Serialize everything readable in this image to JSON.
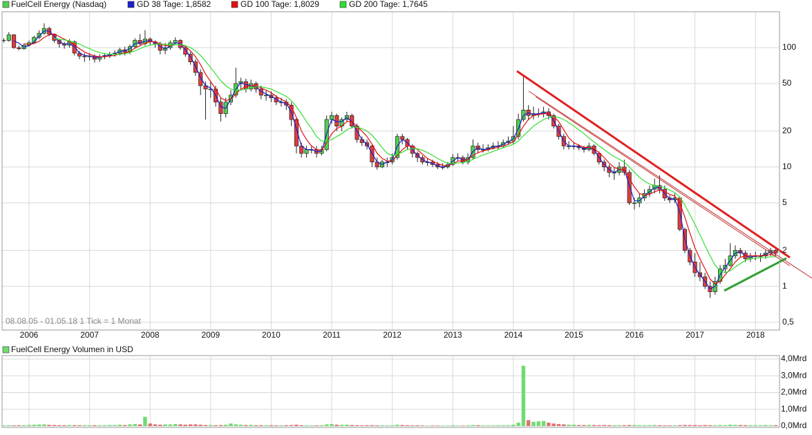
{
  "chart_data": [
    {
      "type": "candlestick",
      "title": "FuelCell Energy (Nasdaq)",
      "annotation": "08.08.05 - 01.05.18   1 Tick = 1 Monat",
      "categories": [
        null,
        null,
        null,
        null,
        null,
        "2006",
        null,
        null,
        null,
        null,
        null,
        null,
        null,
        null,
        null,
        null,
        null,
        "2007",
        null,
        null,
        null,
        null,
        null,
        null,
        null,
        null,
        null,
        null,
        null,
        "2008",
        null,
        null,
        null,
        null,
        null,
        null,
        null,
        null,
        null,
        null,
        null,
        "2009",
        null,
        null,
        null,
        null,
        null,
        null,
        null,
        null,
        null,
        null,
        null,
        "2010",
        null,
        null,
        null,
        null,
        null,
        null,
        null,
        null,
        null,
        null,
        null,
        "2011",
        null,
        null,
        null,
        null,
        null,
        null,
        null,
        null,
        null,
        null,
        null,
        "2012",
        null,
        null,
        null,
        null,
        null,
        null,
        null,
        null,
        null,
        null,
        null,
        "2013",
        null,
        null,
        null,
        null,
        null,
        null,
        null,
        null,
        null,
        null,
        null,
        "2014",
        null,
        null,
        null,
        null,
        null,
        null,
        null,
        null,
        null,
        null,
        null,
        "2015",
        null,
        null,
        null,
        null,
        null,
        null,
        null,
        null,
        null,
        null,
        null,
        "2016",
        null,
        null,
        null,
        null,
        null,
        null,
        null,
        null,
        null,
        null,
        null,
        "2017",
        null,
        null,
        null,
        null,
        null,
        null,
        null,
        null,
        null,
        null,
        null,
        "2018",
        null,
        null,
        null,
        null
      ],
      "close": [
        115,
        128,
        100,
        98,
        105,
        110,
        122,
        132,
        145,
        130,
        115,
        108,
        105,
        112,
        90,
        85,
        85,
        85,
        80,
        84,
        86,
        88,
        90,
        96,
        92,
        102,
        115,
        108,
        118,
        112,
        108,
        95,
        100,
        110,
        115,
        100,
        88,
        76,
        62,
        48,
        45,
        45,
        35,
        28,
        35,
        40,
        50,
        52,
        45,
        50,
        45,
        40,
        40,
        38,
        35,
        35,
        33,
        25,
        15,
        13,
        14,
        14,
        13,
        14,
        25,
        27,
        22,
        25,
        27,
        22,
        17,
        16,
        15,
        11,
        10,
        11,
        11,
        12,
        18,
        17,
        15,
        13,
        12,
        11,
        11,
        10.5,
        10,
        10,
        10.5,
        12,
        12,
        11,
        12,
        15,
        14,
        14,
        14.5,
        15,
        15,
        16,
        16.5,
        18,
        25,
        30,
        27,
        28,
        28,
        29,
        27,
        22,
        18,
        15,
        15,
        15,
        14.5,
        14,
        15,
        13,
        11,
        10,
        9,
        9,
        10,
        9,
        5,
        5,
        5.5,
        6,
        6.5,
        7,
        6.5,
        5.5,
        5.3,
        5.5,
        3,
        2,
        1.6,
        1.3,
        1.2,
        1.0,
        0.9,
        1.1,
        1.4,
        1.5,
        1.8,
        2.0,
        1.9,
        1.7,
        1.8,
        1.8,
        1.8,
        1.9,
        2.0,
        1.9
      ],
      "high": [
        120,
        135,
        130,
        104,
        108,
        115,
        126,
        140,
        160,
        150,
        132,
        118,
        112,
        118,
        115,
        94,
        90,
        90,
        88,
        88,
        90,
        92,
        95,
        100,
        102,
        106,
        120,
        130,
        140,
        122,
        115,
        112,
        110,
        115,
        122,
        118,
        104,
        92,
        80,
        66,
        52,
        52,
        48,
        38,
        38,
        44,
        68,
        56,
        55,
        54,
        52,
        48,
        44,
        43,
        40,
        38,
        37,
        35,
        26,
        16,
        15,
        15,
        15,
        15,
        27,
        29,
        28,
        26,
        29,
        28,
        23,
        18,
        17,
        15.5,
        12,
        11.5,
        12,
        13,
        19,
        19,
        17.5,
        15.5,
        13.5,
        12.5,
        11.8,
        11.5,
        11,
        10.8,
        11,
        12.8,
        13,
        12.5,
        13,
        17,
        16,
        15.5,
        15.5,
        16,
        16.5,
        17,
        18,
        22,
        28,
        58,
        33,
        32,
        31,
        32,
        31,
        28,
        23,
        19,
        16.5,
        16,
        15.5,
        15,
        16,
        15.5,
        13.5,
        11.5,
        10.5,
        10,
        11,
        11.5,
        9.5,
        5.5,
        6,
        6.5,
        7,
        8,
        8.5,
        7,
        5.8,
        6,
        5.6,
        3.1,
        2.1,
        1.9,
        1.6,
        1.3,
        1.1,
        1.2,
        1.5,
        1.7,
        2.3,
        2.2,
        2.1,
        2,
        1.9,
        1.95,
        1.9,
        2,
        2.1,
        2.05
      ],
      "low": [
        110,
        112,
        98,
        95,
        96,
        102,
        108,
        118,
        128,
        125,
        110,
        100,
        98,
        100,
        86,
        80,
        76,
        78,
        75,
        76,
        80,
        82,
        84,
        86,
        86,
        88,
        98,
        104,
        104,
        105,
        100,
        88,
        88,
        96,
        105,
        96,
        84,
        72,
        58,
        40,
        25,
        38,
        32,
        24,
        26,
        33,
        38,
        45,
        42,
        43,
        42,
        37,
        36,
        35,
        33,
        32,
        30,
        22,
        13,
        12,
        12,
        13,
        12,
        12.5,
        13.5,
        23,
        20,
        20,
        24,
        21,
        16,
        15,
        14,
        10,
        9.5,
        9.8,
        10,
        10.5,
        11.5,
        15.5,
        14,
        12,
        11,
        10.5,
        10.2,
        10,
        9.6,
        9.5,
        9.7,
        10.2,
        11.2,
        10.5,
        10.5,
        11.5,
        13,
        13.2,
        13.5,
        14,
        14,
        14.5,
        15.5,
        15.5,
        17,
        24,
        25,
        25,
        26,
        26,
        25,
        21,
        17,
        14,
        14,
        14,
        13.8,
        13.2,
        13.5,
        12.5,
        10.5,
        9.2,
        8.2,
        7.8,
        8.5,
        8.5,
        4.8,
        4.4,
        4.6,
        5.2,
        5.6,
        6,
        6,
        5.2,
        5,
        5,
        2.9,
        1.9,
        1.5,
        1.2,
        1.1,
        0.95,
        0.8,
        0.85,
        1.05,
        1.3,
        1.45,
        1.7,
        1.75,
        1.6,
        1.6,
        1.65,
        1.6,
        1.7,
        1.8,
        1.8
      ],
      "up_color": "#4fd04f",
      "down_color": "#e03c3c",
      "series": [
        {
          "name": "GD 38 Tage: 1,8582",
          "color": "#1f1fcc",
          "values": [
            null,
            null,
            114,
            109,
            101,
            104,
            112,
            125,
            138,
            138,
            125,
            112,
            107,
            108,
            102,
            90,
            86,
            85,
            83,
            83,
            85,
            87,
            89,
            93,
            94,
            98,
            108,
            110,
            113,
            115,
            110,
            102,
            98,
            103,
            110,
            108,
            96,
            84,
            70,
            56,
            48,
            46,
            40,
            32,
            31,
            37,
            45,
            51,
            49,
            48,
            47,
            43,
            41,
            39,
            37,
            35,
            34,
            29,
            21,
            15,
            14,
            14,
            13.5,
            13.5,
            19,
            25,
            24,
            24,
            26,
            24,
            20,
            17,
            15.5,
            13,
            11,
            10.5,
            11,
            11.5,
            15,
            17,
            16,
            14,
            12.5,
            11.5,
            11,
            10.7,
            10.2,
            10,
            10.2,
            11.2,
            12,
            11.5,
            11.5,
            13.5,
            14.5,
            14,
            14.2,
            14.8,
            15,
            15.5,
            16.2,
            17.2,
            21,
            27,
            28.5,
            27.5,
            28,
            28.5,
            28,
            24.5,
            20,
            16.5,
            15,
            15,
            14.8,
            14.2,
            14.5,
            14,
            12,
            10.5,
            9.5,
            9,
            9.5,
            9.5,
            7,
            5.2,
            5.2,
            5.7,
            6.2,
            6.7,
            6.8,
            6,
            5.4,
            5.4,
            4.2,
            2.5,
            1.8,
            1.45,
            1.25,
            1.1,
            0.95,
            1,
            1.25,
            1.45,
            1.65,
            1.9,
            1.95,
            1.8,
            1.75,
            1.8,
            1.8,
            1.85,
            1.95,
            1.86
          ]
        },
        {
          "name": "GD 100 Tage: 1,8029",
          "color": "#e01010",
          "values": [
            null,
            null,
            null,
            null,
            108,
            106,
            108,
            113,
            122,
            128,
            130,
            124,
            118,
            112,
            105,
            98,
            92,
            88,
            85,
            84,
            84,
            85,
            86,
            89,
            90,
            93,
            99,
            104,
            109,
            112,
            112,
            108,
            104,
            104,
            106,
            106,
            102,
            94,
            84,
            72,
            60,
            52,
            45,
            38,
            36,
            37,
            41,
            45,
            47,
            48,
            48,
            46,
            44,
            42,
            39,
            37,
            35,
            32,
            26,
            20,
            17,
            15,
            14,
            13.8,
            16,
            19,
            21,
            22,
            24,
            24,
            22,
            20,
            18,
            15.5,
            13,
            11.8,
            11.2,
            11.2,
            12.5,
            14,
            15,
            15,
            14,
            12.8,
            11.8,
            11.2,
            10.7,
            10.3,
            10.2,
            10.6,
            11.2,
            11.3,
            11.5,
            12.5,
            13.2,
            13.6,
            14,
            14.3,
            14.6,
            15,
            15.5,
            16.3,
            18.5,
            22,
            25,
            27,
            27.5,
            28,
            28,
            26.5,
            24,
            20.5,
            17.5,
            16,
            15.2,
            14.6,
            14.6,
            14.2,
            13.2,
            12,
            10.8,
            9.9,
            9.6,
            9.4,
            8,
            6.8,
            6,
            5.8,
            5.9,
            6.2,
            6.4,
            6.2,
            5.9,
            5.7,
            5,
            3.8,
            2.8,
            2.1,
            1.7,
            1.4,
            1.15,
            1.05,
            1.1,
            1.25,
            1.4,
            1.6,
            1.75,
            1.8,
            1.8,
            1.8,
            1.8,
            1.82,
            1.85,
            1.8
          ]
        },
        {
          "name": "GD 200 Tage: 1,7645",
          "color": "#33dd33",
          "values": [
            null,
            null,
            null,
            null,
            null,
            null,
            null,
            null,
            null,
            null,
            120,
            118,
            116,
            114,
            111,
            107,
            102,
            98,
            94,
            91,
            89,
            88,
            88,
            88,
            89,
            91,
            94,
            98,
            102,
            105,
            107,
            107,
            106,
            105,
            106,
            106,
            104,
            100,
            94,
            86,
            77,
            68,
            60,
            53,
            48,
            45,
            44,
            44,
            45,
            46,
            47,
            47,
            46,
            45,
            43,
            41,
            39,
            36,
            32,
            28,
            24,
            21,
            18,
            16.5,
            16.5,
            17,
            18,
            19,
            20.5,
            21.5,
            21.5,
            21,
            20,
            18.5,
            16.5,
            14.5,
            13,
            12.5,
            12.8,
            13.3,
            14,
            14.3,
            14.2,
            13.8,
            13.2,
            12.5,
            11.8,
            11.2,
            10.8,
            10.7,
            10.8,
            10.9,
            11.1,
            11.6,
            12.1,
            12.6,
            13,
            13.5,
            14,
            14.5,
            15,
            15.5,
            16.5,
            18.3,
            20,
            22,
            23.5,
            25,
            26,
            26.5,
            26,
            25,
            23.5,
            22,
            20.5,
            19,
            17.5,
            16.2,
            15,
            14,
            13,
            12.2,
            11.6,
            11,
            10,
            9,
            8.2,
            7.6,
            7.2,
            7,
            6.9,
            6.7,
            6.4,
            6.1,
            5.6,
            4.8,
            4,
            3.3,
            2.7,
            2.2,
            1.8,
            1.5,
            1.35,
            1.3,
            1.35,
            1.45,
            1.55,
            1.65,
            1.7,
            1.72,
            1.74,
            1.75,
            1.77,
            1.76
          ]
        }
      ],
      "log_scale": true,
      "grid": true,
      "ylim": [
        0.43,
        200
      ],
      "yticks": [
        {
          "value": 0.5,
          "label": "0,5"
        },
        1,
        2,
        5,
        10,
        20,
        50,
        100
      ]
    },
    {
      "type": "bar",
      "title": "FuelCell Energy Volumen in USD",
      "values": [
        0.04,
        0.05,
        0.04,
        0.05,
        0.05,
        0.06,
        0.08,
        0.09,
        0.1,
        0.07,
        0.06,
        0.05,
        0.05,
        0.06,
        0.05,
        0.05,
        0.05,
        0.05,
        0.05,
        0.05,
        0.05,
        0.06,
        0.06,
        0.08,
        0.06,
        0.1,
        0.12,
        0.1,
        0.55,
        0.15,
        0.1,
        0.08,
        0.1,
        0.1,
        0.12,
        0.1,
        0.08,
        0.1,
        0.1,
        0.08,
        0.06,
        0.06,
        0.05,
        0.06,
        0.08,
        0.15,
        0.1,
        0.08,
        0.06,
        0.07,
        0.05,
        0.05,
        0.05,
        0.05,
        0.04,
        0.04,
        0.05,
        0.06,
        0.08,
        0.05,
        0.04,
        0.04,
        0.04,
        0.05,
        0.1,
        0.12,
        0.08,
        0.07,
        0.08,
        0.06,
        0.05,
        0.04,
        0.05,
        0.05,
        0.04,
        0.04,
        0.04,
        0.04,
        0.08,
        0.06,
        0.05,
        0.04,
        0.04,
        0.03,
        0.03,
        0.03,
        0.03,
        0.03,
        0.03,
        0.04,
        0.03,
        0.03,
        0.04,
        0.06,
        0.05,
        0.04,
        0.04,
        0.04,
        0.04,
        0.05,
        0.05,
        0.08,
        0.2,
        3.6,
        0.35,
        0.25,
        0.28,
        0.3,
        0.2,
        0.15,
        0.12,
        0.1,
        0.08,
        0.08,
        0.06,
        0.06,
        0.07,
        0.06,
        0.05,
        0.06,
        0.05,
        0.05,
        0.05,
        0.05,
        0.06,
        0.06,
        0.05,
        0.05,
        0.05,
        0.06,
        0.05,
        0.04,
        0.04,
        0.04,
        0.05,
        0.06,
        0.06,
        0.06,
        0.05,
        0.06,
        0.05,
        0.05,
        0.06,
        0.05,
        0.08,
        0.07,
        0.06,
        0.05,
        0.05,
        0.05,
        0.05,
        0.06,
        0.05,
        0.05
      ],
      "up_color": "#6fdc6f",
      "down_color": "#e07070",
      "grid": true,
      "ylim": [
        0,
        4
      ],
      "yticks": [
        {
          "value": 0,
          "label": "0,0Mrd"
        },
        {
          "value": 1,
          "label": "1,0Mrd"
        },
        {
          "value": 2,
          "label": "2,0Mrd"
        },
        {
          "value": 3,
          "label": "3,0Mrd"
        },
        {
          "value": 4,
          "label": "4,0Mrd"
        }
      ]
    }
  ]
}
